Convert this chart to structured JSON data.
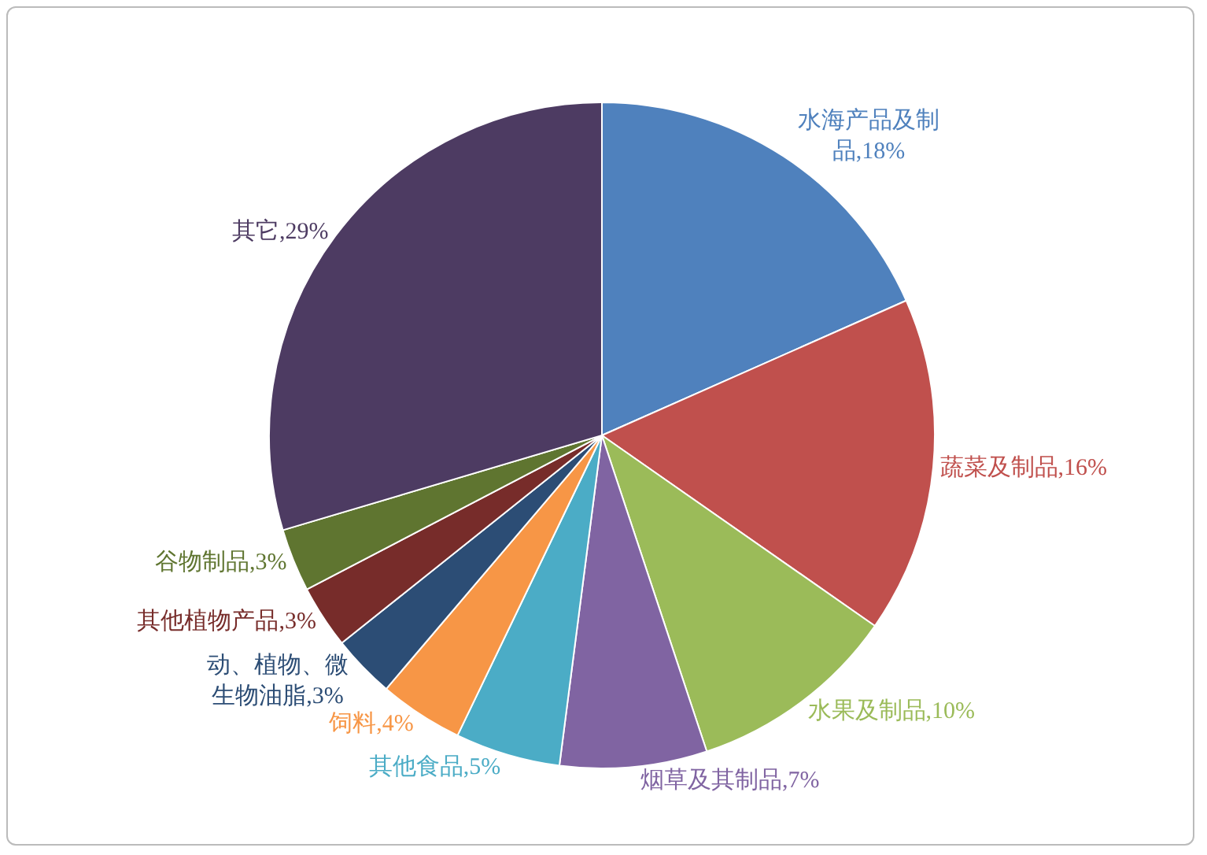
{
  "chart_data": {
    "type": "pie",
    "categories": [
      "水海产品及制品",
      "蔬菜及制品",
      "水果及制品",
      "烟草及其制品",
      "其他食品",
      "饲料",
      "动、植物、微生物油脂",
      "其他植物产品",
      "谷物制品",
      "其它"
    ],
    "values": [
      18,
      16,
      10,
      7,
      5,
      4,
      3,
      3,
      3,
      29
    ],
    "value_labels": [
      "18%",
      "16%",
      "10%",
      "7%",
      "5%",
      "4%",
      "3%",
      "3%",
      "3%",
      "29%"
    ],
    "colors": [
      "#4f81bd",
      "#c0504d",
      "#9bbb59",
      "#8064a2",
      "#4bacc6",
      "#f79646",
      "#2c4d75",
      "#772c2a",
      "#5f7530",
      "#4d3b62"
    ],
    "legend": false
  }
}
